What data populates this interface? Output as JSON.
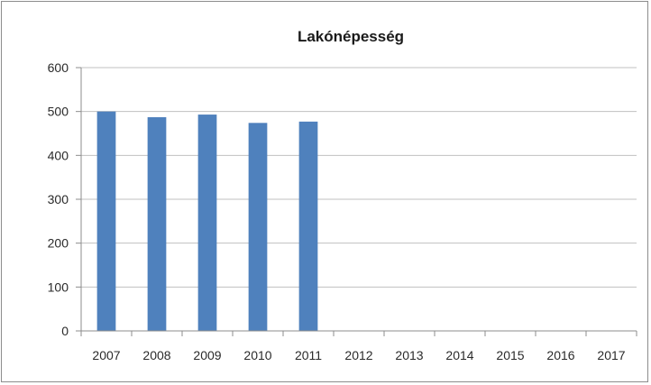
{
  "chart_data": {
    "type": "bar",
    "title": "Lakónépesség",
    "xlabel": "",
    "ylabel": "",
    "categories": [
      "2007",
      "2008",
      "2009",
      "2010",
      "2011",
      "2012",
      "2013",
      "2014",
      "2015",
      "2016",
      "2017"
    ],
    "series": [
      {
        "values": [
          500,
          487,
          493,
          474,
          477,
          null,
          null,
          null,
          null,
          null,
          null
        ]
      }
    ],
    "ylim": [
      0,
      600
    ],
    "yticks": [
      "0",
      "100",
      "200",
      "300",
      "400",
      "500",
      "600"
    ],
    "grid": true,
    "legend": "none",
    "colors": {
      "bar": "#4f81bd",
      "grid": "#c0c0c0",
      "axis": "#8c8c8c"
    }
  }
}
